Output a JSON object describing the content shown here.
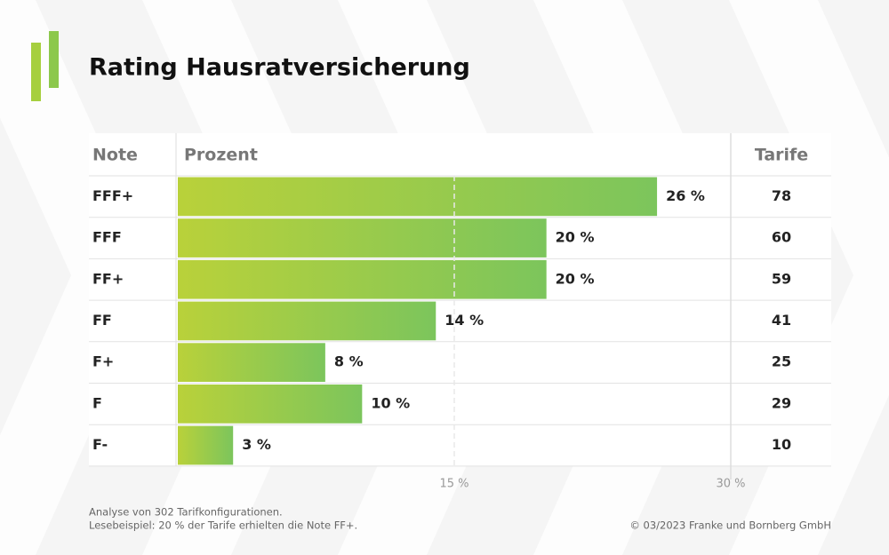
{
  "chart_data": {
    "type": "bar",
    "orientation": "horizontal",
    "title": "Rating Hausratversicherung",
    "columns": [
      "Note",
      "Prozent",
      "Tarife"
    ],
    "categories": [
      "FFF+",
      "FFF",
      "FF+",
      "FF",
      "F+",
      "F",
      "F-"
    ],
    "values": [
      26,
      20,
      20,
      14,
      8,
      10,
      3
    ],
    "value_labels": [
      "26 %",
      "20 %",
      "20 %",
      "14 %",
      "8 %",
      "10 %",
      "3 %"
    ],
    "tarife": [
      78,
      60,
      59,
      41,
      25,
      29,
      10
    ],
    "colors": [
      "#b9d13a",
      "#7cc55c"
    ],
    "xlim": [
      0,
      30
    ],
    "xticks": [
      {
        "value": 15,
        "label": "15 %"
      },
      {
        "value": 30,
        "label": "30 %"
      }
    ],
    "notes": [
      "Analyse von 302 Tarifkonfigurationen.",
      "Lesebeispiel: 20 % der Tarife erhielten die Note FF+."
    ],
    "source": "© 03/2023 Franke und Bornberg GmbH"
  }
}
